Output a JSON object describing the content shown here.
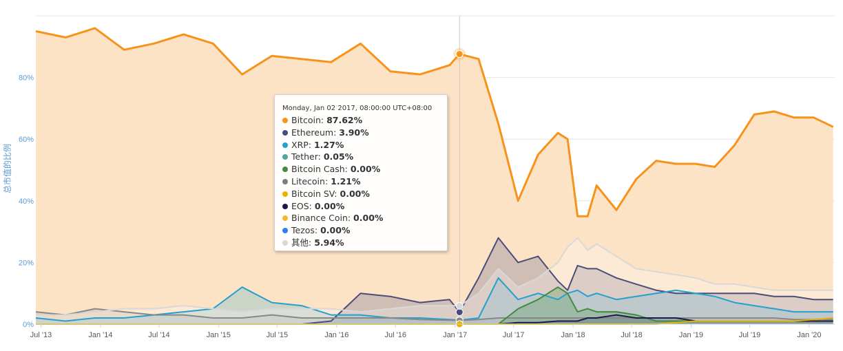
{
  "chart_data": {
    "type": "area",
    "title": "",
    "xlabel": "",
    "ylabel": "总市值的比例",
    "ylim": [
      0,
      100
    ],
    "y_ticks": [
      "0%",
      "20%",
      "40%",
      "60%",
      "80%"
    ],
    "x_ticks": [
      "Jul '13",
      "Jan '14",
      "Jul '14",
      "Jan '15",
      "Jul '15",
      "Jan '16",
      "Jul '16",
      "Jan '17",
      "Jul '17",
      "Jan '18",
      "Jul '18",
      "Jan '19",
      "Jul '19",
      "Jan '20"
    ],
    "grid": true,
    "legend": "none",
    "x": [
      "2013-06",
      "2013-09",
      "2013-12",
      "2014-03",
      "2014-06",
      "2014-09",
      "2014-12",
      "2015-03",
      "2015-06",
      "2015-09",
      "2015-12",
      "2016-03",
      "2016-06",
      "2016-09",
      "2016-12",
      "2017-01",
      "2017-03",
      "2017-05",
      "2017-07",
      "2017-09",
      "2017-11",
      "2017-12",
      "2018-01",
      "2018-02",
      "2018-03",
      "2018-05",
      "2018-07",
      "2018-09",
      "2018-11",
      "2019-01",
      "2019-03",
      "2019-05",
      "2019-07",
      "2019-09",
      "2019-11",
      "2020-01",
      "2020-03"
    ],
    "series": [
      {
        "name": "Bitcoin",
        "color": "#f7931a",
        "fill": "#fce3c6",
        "values": [
          95,
          93,
          96,
          89,
          91,
          94,
          91,
          81,
          87,
          86,
          85,
          91,
          82,
          81,
          84,
          87.6,
          86,
          65,
          40,
          55,
          62,
          60,
          35,
          35,
          45,
          37,
          47,
          53,
          52,
          52,
          51,
          58,
          68,
          69,
          67,
          67,
          64
        ]
      },
      {
        "name": "Ethereum",
        "color": "#4a4c7a",
        "fill": "rgba(74,76,122,0.25)",
        "values": [
          0,
          0,
          0,
          0,
          0,
          0,
          0,
          0,
          0,
          0,
          1,
          10,
          9,
          7,
          8,
          3.9,
          15,
          28,
          20,
          22,
          14,
          11,
          19,
          18,
          18,
          15,
          13,
          11,
          10,
          10,
          10,
          10,
          10,
          9,
          9,
          8,
          8
        ]
      },
      {
        "name": "XRP",
        "color": "#23a0d0",
        "fill": "rgba(35,160,208,0.22)",
        "values": [
          2,
          1,
          2,
          2,
          3,
          4,
          5,
          12,
          7,
          6,
          3,
          3,
          2,
          2,
          1.5,
          1.27,
          2,
          15,
          8,
          10,
          8,
          10,
          11,
          9,
          10,
          8,
          9,
          10,
          11,
          10,
          9,
          7,
          6,
          5,
          4,
          4,
          4
        ]
      },
      {
        "name": "Litecoin",
        "color": "#888888",
        "fill": "rgba(136,136,136,0.2)",
        "values": [
          4,
          3,
          5,
          4,
          3,
          3,
          2,
          2,
          3,
          2,
          2,
          2,
          2,
          1.5,
          1.3,
          1.21,
          1.5,
          2,
          2,
          2,
          2,
          2,
          2,
          2,
          2,
          2,
          2,
          2,
          2,
          2,
          2,
          2,
          2,
          2,
          1.5,
          1.5,
          1.5
        ]
      },
      {
        "name": "其他",
        "color": "#d8d8d8",
        "fill": "rgba(255,255,255,0.25)",
        "values": [
          3,
          3,
          4,
          5,
          5,
          6,
          5,
          4,
          5,
          5,
          5,
          4,
          5,
          6,
          6,
          5.94,
          10,
          18,
          12,
          15,
          20,
          25,
          28,
          24,
          26,
          22,
          18,
          17,
          16,
          15,
          13,
          13,
          12,
          11,
          11,
          11,
          11
        ]
      },
      {
        "name": "Bitcoin Cash",
        "color": "#3f8b3f",
        "fill": "rgba(63,139,63,0.25)",
        "values": [
          0,
          0,
          0,
          0,
          0,
          0,
          0,
          0,
          0,
          0,
          0,
          0,
          0,
          0,
          0,
          0,
          0,
          0,
          5,
          8,
          12,
          10,
          4,
          5,
          4,
          4,
          3,
          1,
          1,
          1,
          1,
          1,
          1,
          1,
          1,
          1,
          1
        ]
      },
      {
        "name": "EOS",
        "color": "#1a1b4b",
        "fill": "rgba(26,27,75,0.15)",
        "values": [
          0,
          0,
          0,
          0,
          0,
          0,
          0,
          0,
          0,
          0,
          0,
          0,
          0,
          0,
          0,
          0,
          0,
          0,
          0.5,
          0.5,
          1,
          1,
          1,
          2,
          2,
          3,
          2,
          2,
          2,
          1,
          1,
          1,
          1,
          1,
          1,
          1,
          1
        ]
      },
      {
        "name": "Bitcoin SV",
        "color": "#e6b400",
        "fill": "none",
        "values": [
          0,
          0,
          0,
          0,
          0,
          0,
          0,
          0,
          0,
          0,
          0,
          0,
          0,
          0,
          0,
          0,
          0,
          0,
          0,
          0,
          0,
          0,
          0,
          0,
          0,
          0,
          0,
          0,
          0.5,
          1,
          1,
          1,
          1,
          1,
          1,
          1.5,
          2
        ]
      }
    ],
    "tooltip": {
      "header": "Monday, Jan 02 2017, 08:00:00 UTC+08:00",
      "x": "2017-01",
      "rows": [
        {
          "name": "Bitcoin",
          "value": "87.62%",
          "color": "#f7931a"
        },
        {
          "name": "Ethereum",
          "value": "3.90%",
          "color": "#4a4c7a"
        },
        {
          "name": "XRP",
          "value": "1.27%",
          "color": "#23a0d0"
        },
        {
          "name": "Tether",
          "value": "0.05%",
          "color": "#4fa79a"
        },
        {
          "name": "Bitcoin Cash",
          "value": "0.00%",
          "color": "#3f8b3f"
        },
        {
          "name": "Litecoin",
          "value": "1.21%",
          "color": "#7d7d7d"
        },
        {
          "name": "Bitcoin SV",
          "value": "0.00%",
          "color": "#e6b400"
        },
        {
          "name": "EOS",
          "value": "0.00%",
          "color": "#1a1b4b"
        },
        {
          "name": "Binance Coin",
          "value": "0.00%",
          "color": "#f3ba2f"
        },
        {
          "name": "Tezos",
          "value": "0.00%",
          "color": "#2c7df7"
        },
        {
          "name": "其他",
          "value": "5.94%",
          "color": "#d8d8d8"
        }
      ]
    }
  }
}
